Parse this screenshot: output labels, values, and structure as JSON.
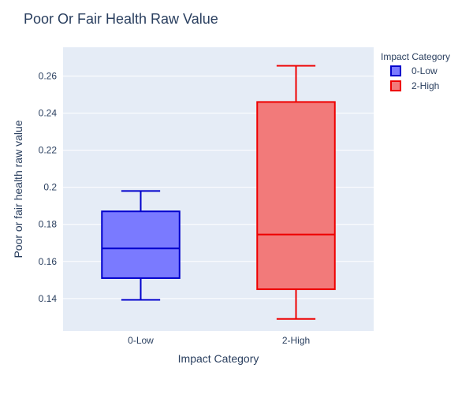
{
  "chart_data": {
    "type": "box",
    "title": "Poor Or Fair Health Raw Value",
    "xlabel": "Impact Category",
    "ylabel": "Poor or fair health raw value",
    "categories": [
      "0-Low",
      "2-High"
    ],
    "ylim": [
      0.1225,
      0.2755
    ],
    "yticks": [
      0.14,
      0.16,
      0.18,
      0.2,
      0.22,
      0.24,
      0.26
    ],
    "ytick_labels": [
      "0.14",
      "0.16",
      "0.18",
      "0.2",
      "0.22",
      "0.24",
      "0.26"
    ],
    "legend": {
      "title": "Impact Category",
      "placement": "top-right"
    },
    "series": [
      {
        "name": "0-Low",
        "min": 0.1393,
        "q1": 0.151,
        "median": 0.167,
        "q3": 0.187,
        "max": 0.198,
        "fill": "#7a7aff",
        "line": "#0000cc"
      },
      {
        "name": "2-High",
        "min": 0.129,
        "q1": 0.145,
        "median": 0.1745,
        "q3": 0.246,
        "max": 0.2655,
        "fill": "#f27a7a",
        "line": "#ee0000"
      }
    ]
  }
}
